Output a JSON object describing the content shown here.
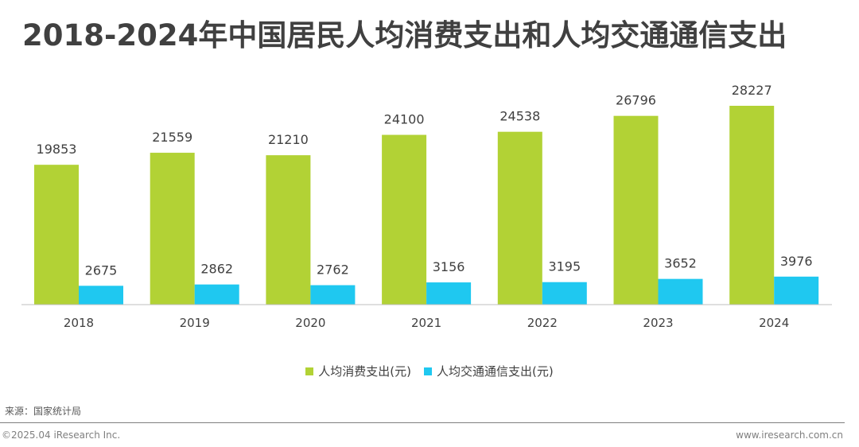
{
  "title": "2018-2024年中国居民人均消费支出和人均交通通信支出",
  "source": "来源：国家统计局",
  "copyright": "©2025.04 iResearch Inc.",
  "website": "www.iresearch.com.cn",
  "colors": {
    "consumption": "#B2D235",
    "transport": "#1FC8F0",
    "axis": "#BFBFBF",
    "label": "#404040"
  },
  "chart_data": {
    "type": "bar",
    "title": "2018-2024年中国居民人均消费支出和人均交通通信支出",
    "categories": [
      "2018",
      "2019",
      "2020",
      "2021",
      "2022",
      "2023",
      "2024"
    ],
    "series": [
      {
        "name": "人均消费支出(元)",
        "values": [
          19853,
          21559,
          21210,
          24100,
          24538,
          26796,
          28227
        ]
      },
      {
        "name": "人均交通通信支出(元)",
        "values": [
          2675,
          2862,
          2762,
          3156,
          3195,
          3652,
          3976
        ]
      }
    ],
    "ylim": [
      0,
      28227
    ],
    "grid": false,
    "data_labels": true,
    "legend_position": "bottom"
  }
}
